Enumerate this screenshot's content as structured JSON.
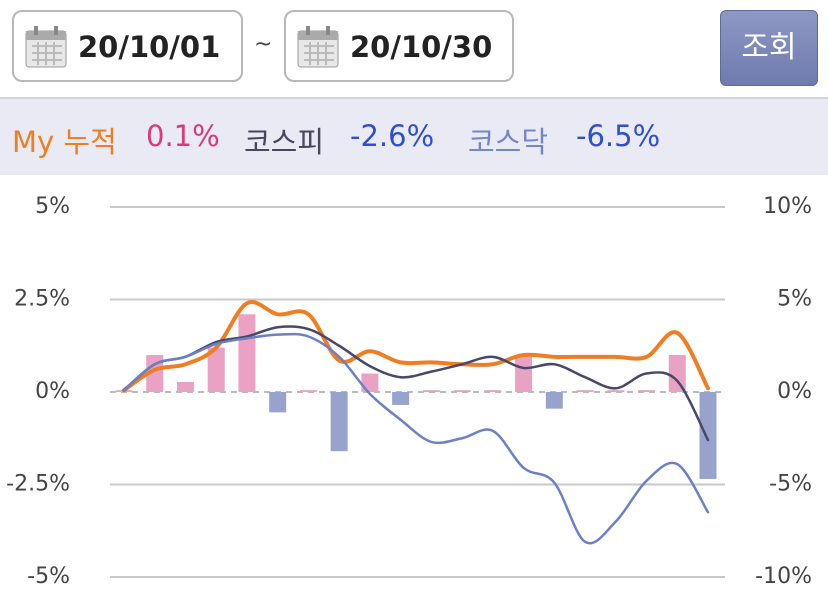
{
  "header": {
    "start_date": "20/10/01",
    "separator": "~",
    "end_date": "20/10/30",
    "button": "조회"
  },
  "summary": [
    {
      "label": "My 누적",
      "value": "0.1%"
    },
    {
      "label": "코스피",
      "value": "-2.6%"
    },
    {
      "label": "코스닥",
      "value": "-6.5%"
    }
  ],
  "chart_data": {
    "type": "bar-line",
    "categories": [
      null,
      null,
      null,
      null,
      null,
      null,
      null,
      null,
      null,
      null,
      null,
      null,
      null,
      null,
      null,
      null,
      null,
      null,
      null,
      null
    ],
    "ylim": [
      -5,
      5
    ],
    "yticks": [
      {
        "value": 5,
        "label": "5%"
      },
      {
        "value": 2.5,
        "label": "2.5%"
      },
      {
        "value": 0,
        "label": "0%"
      },
      {
        "value": -2.5,
        "label": "-2.5%"
      },
      {
        "value": -5,
        "label": "-5%"
      }
    ],
    "y2lim": [
      -10,
      10
    ],
    "y2ticks": [
      {
        "value": 10,
        "label": "10%"
      },
      {
        "value": 5,
        "label": "5%"
      },
      {
        "value": 0,
        "label": "0%"
      },
      {
        "value": -5,
        "label": "-5%"
      },
      {
        "value": -10,
        "label": "-10%"
      }
    ],
    "grid": true,
    "series": [
      {
        "type": "bar",
        "color": "#e9a2c4",
        "negative_color": "#97a3cd",
        "values": [
          0.05,
          1.0,
          0.27,
          1.2,
          2.1,
          -0.55,
          0.05,
          -1.6,
          0.5,
          -0.35,
          0.05,
          0.05,
          0.05,
          1.0,
          -0.45,
          0.05,
          0.05,
          0.05,
          1.0,
          -2.35
        ]
      },
      {
        "type": "line",
        "color": "#f07d22",
        "values": [
          0.05,
          0.6,
          0.75,
          1.2,
          2.4,
          2.1,
          2.1,
          0.85,
          1.1,
          0.8,
          0.8,
          0.75,
          0.75,
          1.0,
          0.95,
          0.95,
          0.95,
          0.95,
          1.6,
          0.1
        ]
      },
      {
        "type": "line",
        "color": "#48486a",
        "axis": "y2",
        "values": [
          0.1,
          1.5,
          1.9,
          2.7,
          3.0,
          3.5,
          3.4,
          2.5,
          1.4,
          0.8,
          1.1,
          1.5,
          1.9,
          1.3,
          1.5,
          0.8,
          0.2,
          1.0,
          0.6,
          -2.6
        ]
      },
      {
        "type": "line",
        "color": "#6c80c8",
        "axis": "y2",
        "values": [
          0.1,
          1.5,
          1.9,
          2.6,
          2.9,
          3.1,
          3.0,
          1.9,
          -0.1,
          -1.5,
          -2.7,
          -2.5,
          -2.1,
          -4.1,
          -4.9,
          -8.1,
          -7.0,
          -4.8,
          -3.9,
          -6.5
        ]
      }
    ]
  }
}
